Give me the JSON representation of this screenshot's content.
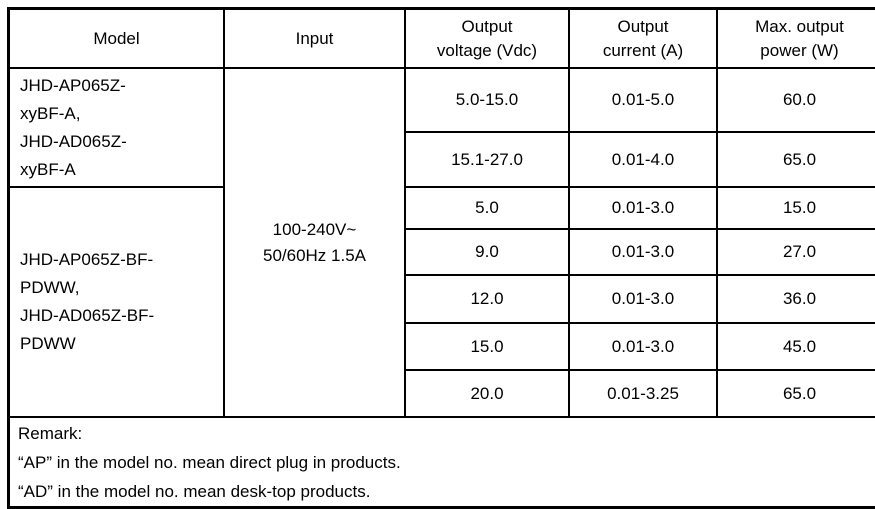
{
  "table": {
    "headers": {
      "model": "Model",
      "input": "Input",
      "voltage": [
        "Output",
        "voltage (Vdc)"
      ],
      "current": [
        "Output",
        "current (A)"
      ],
      "power": [
        "Max. output",
        "power (W)"
      ]
    },
    "model_groups": [
      {
        "lines": [
          "JHD-AP065Z-",
          "xyBF-A,",
          "JHD-AD065Z-",
          "xyBF-A"
        ]
      },
      {
        "lines": [
          "JHD-AP065Z-BF-",
          "PDWW,",
          "JHD-AD065Z-BF-",
          "PDWW"
        ]
      }
    ],
    "input_lines": [
      "100-240V~",
      "50/60Hz 1.5A"
    ],
    "rows": [
      {
        "voltage": "5.0-15.0",
        "current": "0.01-5.0",
        "power": "60.0"
      },
      {
        "voltage": "15.1-27.0",
        "current": "0.01-4.0",
        "power": "65.0"
      },
      {
        "voltage": "5.0",
        "current": "0.01-3.0",
        "power": "15.0"
      },
      {
        "voltage": "9.0",
        "current": "0.01-3.0",
        "power": "27.0"
      },
      {
        "voltage": "12.0",
        "current": "0.01-3.0",
        "power": "36.0"
      },
      {
        "voltage": "15.0",
        "current": "0.01-3.0",
        "power": "45.0"
      },
      {
        "voltage": "20.0",
        "current": "0.01-3.25",
        "power": "65.0"
      }
    ],
    "remark": {
      "lines": [
        "Remark:",
        "“AP” in the model no. mean direct plug in products.",
        "“AD” in the model no. mean desk-top products."
      ]
    }
  }
}
